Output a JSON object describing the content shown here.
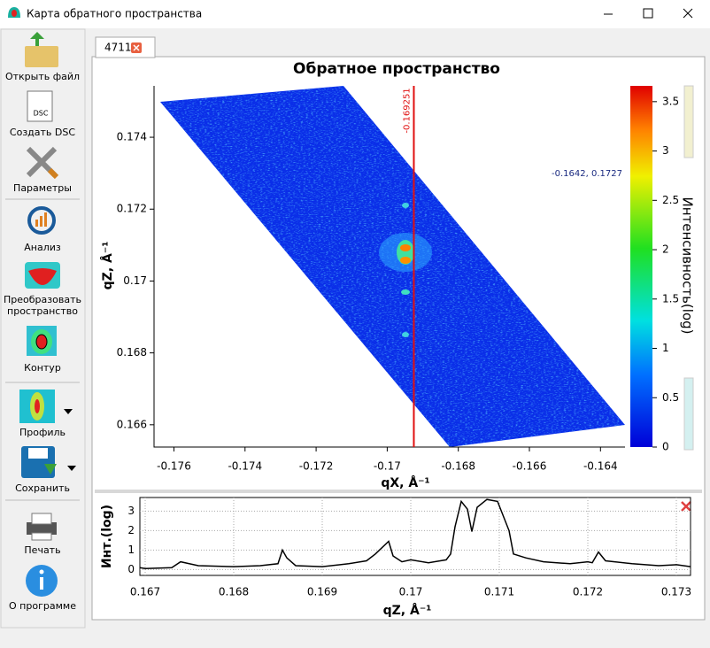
{
  "window": {
    "title": "Карта обратного пространства"
  },
  "toolbar": [
    "Открыть файл",
    "Создать DSC",
    "Параметры",
    "Анализ",
    "Преобразовать пространство",
    "Контур",
    "Профиль",
    "Сохранить",
    "Печать",
    "О программе"
  ],
  "tab": "4711",
  "chart_data": [
    {
      "type": "heatmap",
      "title": "Обратное пространство",
      "xlabel": "qX, Å⁻¹",
      "ylabel": "qZ, Å⁻¹",
      "xlim": [
        -0.17656,
        -0.16331
      ],
      "ylim": [
        0.16538,
        0.17543
      ],
      "xticks": [
        -0.176,
        -0.174,
        -0.172,
        -0.17,
        -0.168,
        -0.166,
        -0.164
      ],
      "yticks": [
        0.166,
        0.168,
        0.17,
        0.172,
        0.174
      ],
      "colorbar": {
        "label": "Интенсивность(log)",
        "lim": [
          0,
          3.66
        ],
        "ticks": [
          0,
          0.5,
          1,
          1.5,
          2,
          2.5,
          3,
          3.5
        ]
      },
      "marker": {
        "x": -0.169251,
        "color": "#e01010"
      },
      "cursor_label": "-0.1642, 0.1727"
    },
    {
      "type": "line",
      "xlabel": "qZ, Å⁻¹",
      "ylabel": "Инт.(log)",
      "x": [
        0.16694,
        0.167,
        0.1673,
        0.1674,
        0.1676,
        0.168,
        0.1683,
        0.1685,
        0.16855,
        0.1686,
        0.1687,
        0.169,
        0.1693,
        0.1695,
        0.1696,
        0.16975,
        0.1698,
        0.1699,
        0.17,
        0.1702,
        0.1704,
        0.17045,
        0.1705,
        0.17057,
        0.17064,
        0.17069,
        0.17075,
        0.17086,
        0.17098,
        0.17111,
        0.17116,
        0.1713,
        0.1715,
        0.1718,
        0.172,
        0.17205,
        0.17212,
        0.1722,
        0.1725,
        0.1728,
        0.173,
        0.17316
      ],
      "series": [
        {
          "color": "#000000",
          "values": [
            0.1,
            0.05,
            0.1,
            0.4,
            0.2,
            0.15,
            0.2,
            0.3,
            1.0,
            0.6,
            0.2,
            0.15,
            0.3,
            0.45,
            0.8,
            1.45,
            0.7,
            0.4,
            0.5,
            0.35,
            0.5,
            0.8,
            2.2,
            3.5,
            3.1,
            1.95,
            3.2,
            3.6,
            3.5,
            2.0,
            0.8,
            0.6,
            0.4,
            0.3,
            0.4,
            0.35,
            0.9,
            0.45,
            0.3,
            0.2,
            0.25,
            0.15
          ]
        }
      ],
      "xlim": [
        0.16694,
        0.17316
      ],
      "ylim": [
        -0.3,
        3.7
      ],
      "xticks": [
        0.167,
        0.168,
        0.169,
        0.17,
        0.171,
        0.172,
        0.173
      ],
      "yticks": [
        0,
        1,
        2,
        3
      ],
      "grid": true
    }
  ]
}
